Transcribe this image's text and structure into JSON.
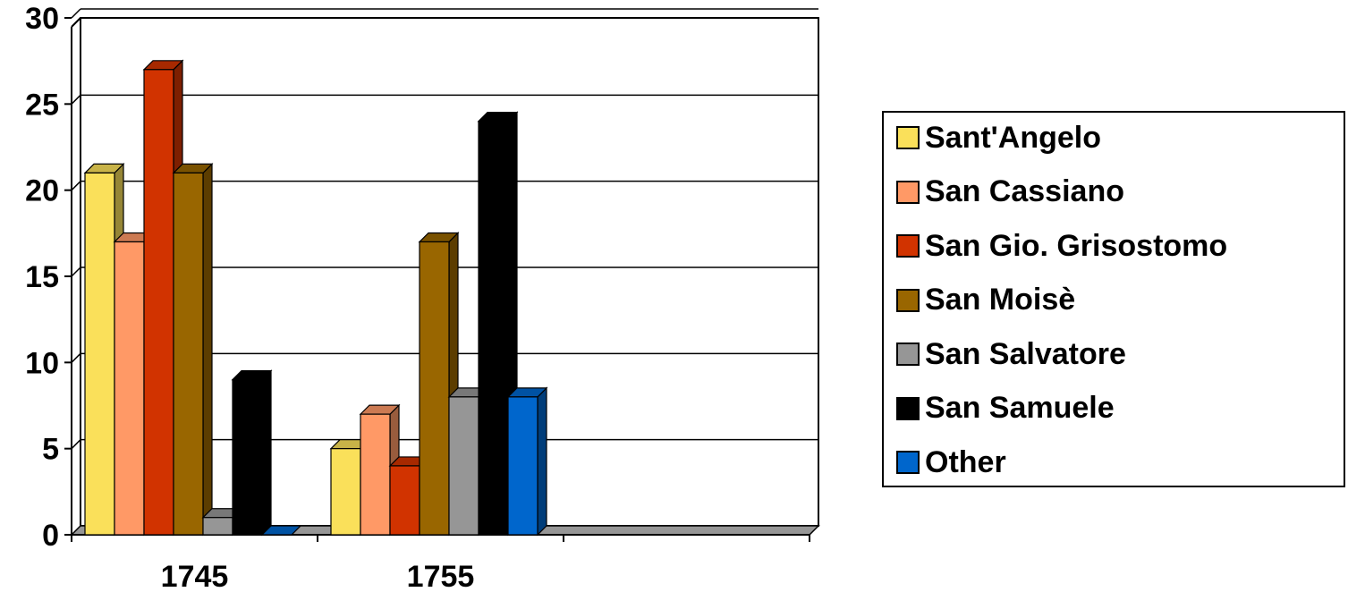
{
  "chart_data": {
    "type": "bar",
    "title": "",
    "xlabel": "",
    "ylabel": "",
    "categories": [
      "1745",
      "1755",
      ""
    ],
    "ylim": [
      0,
      30
    ],
    "yticks": [
      "0",
      "5",
      "10",
      "15",
      "20",
      "25",
      "30"
    ],
    "grid": true,
    "legend_position": "right",
    "series": [
      {
        "name": "Sant'Angelo",
        "color": "#FAE05A",
        "values": [
          21,
          5,
          null
        ]
      },
      {
        "name": "San Cassiano",
        "color": "#FF9966",
        "values": [
          17,
          7,
          null
        ]
      },
      {
        "name": "San Gio. Grisostomo",
        "color": "#D13300",
        "values": [
          27,
          4,
          null
        ]
      },
      {
        "name": "San Moisè",
        "color": "#996600",
        "values": [
          21,
          17,
          null
        ]
      },
      {
        "name": "San Salvatore",
        "color": "#969696",
        "values": [
          1,
          8,
          null
        ]
      },
      {
        "name": "San Samuele",
        "color": "#000000",
        "values": [
          9,
          24,
          null
        ]
      },
      {
        "name": "Other",
        "color": "#0066CC",
        "values": [
          0,
          8,
          null
        ]
      }
    ]
  }
}
